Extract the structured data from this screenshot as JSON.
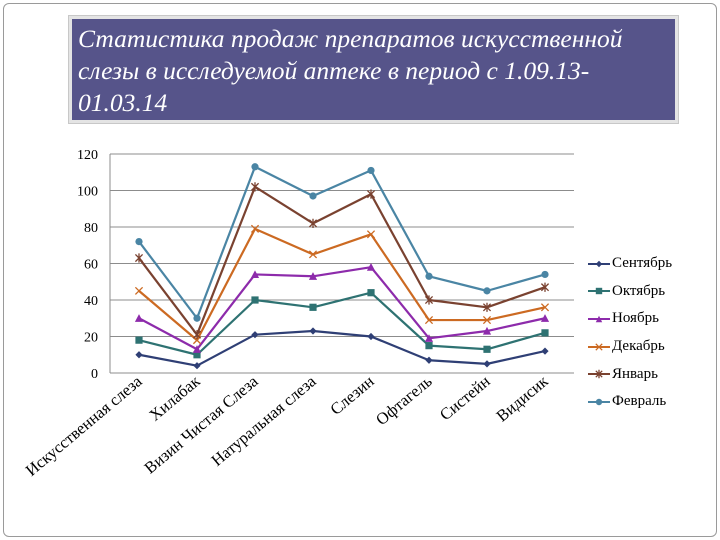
{
  "slide": {
    "title": "Статистика продаж препаратов искусственной слезы в исследуемой аптеке в период с 1.09.13-01.03.14"
  },
  "chart_data": {
    "type": "line",
    "title": "",
    "xlabel": "",
    "ylabel": "",
    "ylim": [
      0,
      120
    ],
    "yticks": [
      0,
      20,
      40,
      60,
      80,
      100,
      120
    ],
    "grid": true,
    "legend_position": "right",
    "categories": [
      "Искусственная слеза",
      "Хилабак",
      "Визин Чистая Слеза",
      "Натуральная слеза",
      "Слезин",
      "Офтагель",
      "Систейн",
      "Видисик"
    ],
    "series": [
      {
        "name": "Сентябрь",
        "color": "#2f3f75",
        "marker": "diamond",
        "values": [
          10,
          4,
          21,
          23,
          20,
          7,
          5,
          12
        ]
      },
      {
        "name": "Октябрь",
        "color": "#2e7272",
        "marker": "square",
        "values": [
          18,
          10,
          40,
          36,
          44,
          15,
          13,
          22
        ]
      },
      {
        "name": "Ноябрь",
        "color": "#8d2bab",
        "marker": "triangle",
        "values": [
          30,
          13,
          54,
          53,
          58,
          19,
          23,
          30
        ]
      },
      {
        "name": "Декабрь",
        "color": "#cc6a22",
        "marker": "x",
        "values": [
          45,
          18,
          79,
          65,
          76,
          29,
          29,
          36
        ]
      },
      {
        "name": "Январь",
        "color": "#7a4230",
        "marker": "star",
        "values": [
          63,
          21,
          102,
          82,
          98,
          40,
          36,
          47
        ]
      },
      {
        "name": "Февраль",
        "color": "#4a85a4",
        "marker": "circle",
        "values": [
          72,
          30,
          113,
          97,
          111,
          53,
          45,
          54
        ]
      }
    ]
  }
}
